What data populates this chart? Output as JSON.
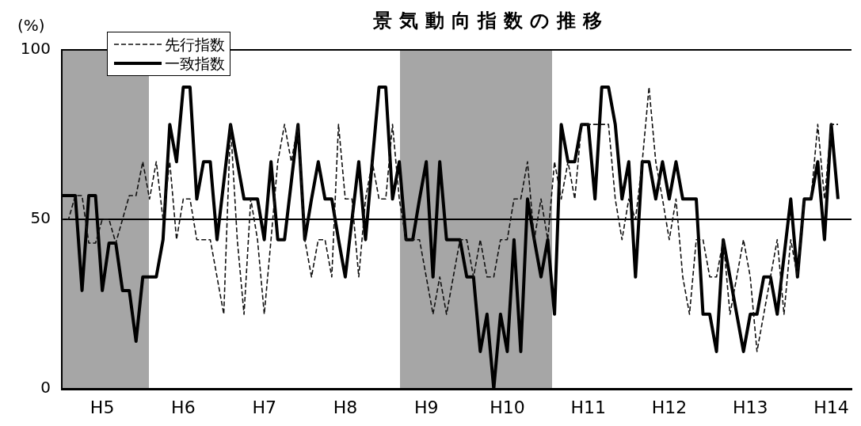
{
  "chart_data": {
    "type": "line",
    "title": "景気動向指数の推移",
    "ylabel": "(%)",
    "categories": [
      null,
      null,
      null,
      null,
      null,
      null,
      "H5",
      null,
      null,
      null,
      null,
      null,
      null,
      null,
      null,
      null,
      null,
      null,
      "H6",
      null,
      null,
      null,
      null,
      null,
      null,
      null,
      null,
      null,
      null,
      null,
      "H7",
      null,
      null,
      null,
      null,
      null,
      null,
      null,
      null,
      null,
      null,
      null,
      "H8",
      null,
      null,
      null,
      null,
      null,
      null,
      null,
      null,
      null,
      null,
      null,
      "H9",
      null,
      null,
      null,
      null,
      null,
      null,
      null,
      null,
      null,
      null,
      null,
      "H10",
      null,
      null,
      null,
      null,
      null,
      null,
      null,
      null,
      null,
      null,
      null,
      "H11",
      null,
      null,
      null,
      null,
      null,
      null,
      null,
      null,
      null,
      null,
      null,
      "H12",
      null,
      null,
      null,
      null,
      null,
      null,
      null,
      null,
      null,
      null,
      null,
      "H13",
      null,
      null,
      null,
      null,
      null,
      null,
      null,
      null,
      null,
      null,
      null,
      "H14",
      null,
      null,
      null
    ],
    "series": [
      {
        "name": "先行指数",
        "color": "#111111",
        "line_style": "dashed",
        "values": [
          50,
          50,
          57,
          57,
          43,
          43,
          50,
          50,
          43,
          50,
          57,
          57,
          67,
          56,
          67,
          50,
          67,
          44,
          56,
          56,
          44,
          44,
          44,
          33,
          22,
          78,
          44,
          22,
          56,
          44,
          22,
          44,
          67,
          78,
          67,
          78,
          44,
          33,
          44,
          44,
          33,
          78,
          56,
          56,
          33,
          56,
          67,
          56,
          56,
          78,
          56,
          44,
          44,
          44,
          33,
          22,
          33,
          22,
          33,
          44,
          44,
          33,
          44,
          33,
          33,
          44,
          44,
          56,
          56,
          67,
          44,
          56,
          44,
          67,
          56,
          67,
          56,
          78,
          78,
          78,
          78,
          78,
          56,
          44,
          56,
          50,
          67,
          89,
          67,
          56,
          44,
          56,
          33,
          22,
          44,
          44,
          33,
          33,
          44,
          22,
          33,
          44,
          33,
          11,
          22,
          33,
          44,
          22,
          44,
          33,
          56,
          56,
          78,
          56,
          78,
          78,
          null,
          null
        ]
      },
      {
        "name": "一致指数",
        "color": "#000000",
        "line_style": "solid",
        "values": [
          57,
          57,
          57,
          29,
          57,
          57,
          29,
          43,
          43,
          29,
          29,
          14,
          33,
          33,
          33,
          44,
          78,
          67,
          89,
          89,
          56,
          67,
          67,
          44,
          61,
          78,
          67,
          56,
          56,
          56,
          44,
          67,
          44,
          44,
          61,
          78,
          44,
          56,
          67,
          56,
          56,
          44,
          33,
          50,
          67,
          44,
          67,
          89,
          89,
          56,
          67,
          44,
          44,
          56,
          67,
          33,
          67,
          44,
          44,
          44,
          33,
          33,
          11,
          22,
          0,
          22,
          11,
          44,
          11,
          56,
          44,
          33,
          44,
          22,
          78,
          67,
          67,
          78,
          78,
          56,
          89,
          89,
          78,
          56,
          67,
          33,
          67,
          67,
          56,
          67,
          56,
          67,
          56,
          56,
          56,
          22,
          22,
          11,
          44,
          33,
          22,
          11,
          22,
          22,
          33,
          33,
          22,
          39,
          56,
          33,
          56,
          56,
          67,
          44,
          78,
          56,
          null,
          null
        ]
      }
    ],
    "ylim": [
      0,
      100
    ],
    "yticks": [
      0,
      50,
      100
    ],
    "grid": "y",
    "legend": "top left",
    "marker": "none"
  }
}
